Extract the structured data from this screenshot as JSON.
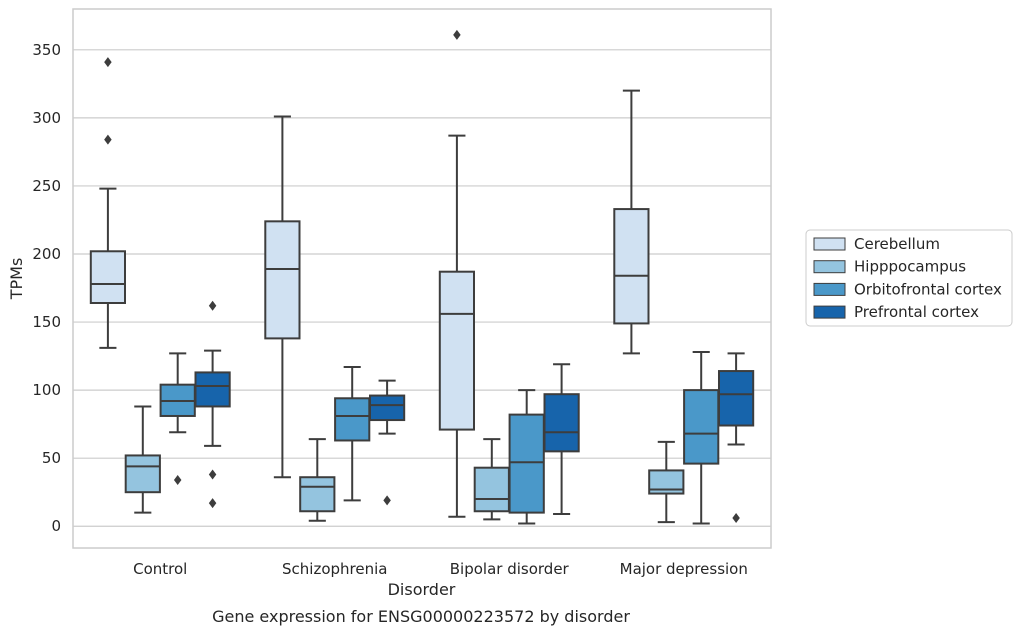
{
  "chart_data": {
    "type": "box",
    "title": "Gene expression for ENSG00000223572 by disorder",
    "xlabel": "Disorder",
    "ylabel": "TPMs",
    "ylim": [
      -16,
      380
    ],
    "yticks": [
      0,
      50,
      100,
      150,
      200,
      250,
      300,
      350
    ],
    "grid": "horizontal",
    "legend_position": "right",
    "categories": [
      "Control",
      "Schizophrenia",
      "Bipolar disorder",
      "Major depression"
    ],
    "colors": {
      "Cerebellum": "#d0e1f2",
      "Hipppocampus": "#94c4df",
      "Orbitofrontal cortex": "#4a98c9",
      "Prefrontal cortex": "#1764ab",
      "grid": "#cccccc",
      "box_edge": "#3d3d3d"
    },
    "series": [
      {
        "name": "Cerebellum",
        "boxes": [
          {
            "low": 131,
            "q1": 164,
            "median": 178,
            "q3": 202,
            "high": 248,
            "outliers": [
              284,
              341
            ]
          },
          {
            "low": 36,
            "q1": 138,
            "median": 189,
            "q3": 224,
            "high": 301,
            "outliers": []
          },
          {
            "low": 7,
            "q1": 71,
            "median": 156,
            "q3": 187,
            "high": 287,
            "outliers": [
              361
            ]
          },
          {
            "low": 127,
            "q1": 149,
            "median": 184,
            "q3": 233,
            "high": 320,
            "outliers": []
          }
        ]
      },
      {
        "name": "Hipppocampus",
        "boxes": [
          {
            "low": 10,
            "q1": 25,
            "median": 44,
            "q3": 52,
            "high": 88,
            "outliers": []
          },
          {
            "low": 4,
            "q1": 11,
            "median": 29,
            "q3": 36,
            "high": 64,
            "outliers": []
          },
          {
            "low": 5,
            "q1": 11,
            "median": 20,
            "q3": 43,
            "high": 64,
            "outliers": []
          },
          {
            "low": 3,
            "q1": 24,
            "median": 27,
            "q3": 41,
            "high": 62,
            "outliers": []
          }
        ]
      },
      {
        "name": "Orbitofrontal cortex",
        "boxes": [
          {
            "low": 69,
            "q1": 81,
            "median": 92,
            "q3": 104,
            "high": 127,
            "outliers": [
              34
            ]
          },
          {
            "low": 19,
            "q1": 63,
            "median": 81,
            "q3": 94,
            "high": 117,
            "outliers": []
          },
          {
            "low": 2,
            "q1": 10,
            "median": 47,
            "q3": 82,
            "high": 100,
            "outliers": []
          },
          {
            "low": 2,
            "q1": 46,
            "median": 68,
            "q3": 100,
            "high": 128,
            "outliers": []
          }
        ]
      },
      {
        "name": "Prefrontal cortex",
        "boxes": [
          {
            "low": 59,
            "q1": 88,
            "median": 103,
            "q3": 113,
            "high": 129,
            "outliers": [
              17,
              38,
              162
            ]
          },
          {
            "low": 68,
            "q1": 78,
            "median": 89,
            "q3": 96,
            "high": 107,
            "outliers": [
              19
            ]
          },
          {
            "low": 9,
            "q1": 55,
            "median": 69,
            "q3": 97,
            "high": 119,
            "outliers": []
          },
          {
            "low": 60,
            "q1": 74,
            "median": 97,
            "q3": 114,
            "high": 127,
            "outliers": [
              6
            ]
          }
        ]
      }
    ]
  }
}
